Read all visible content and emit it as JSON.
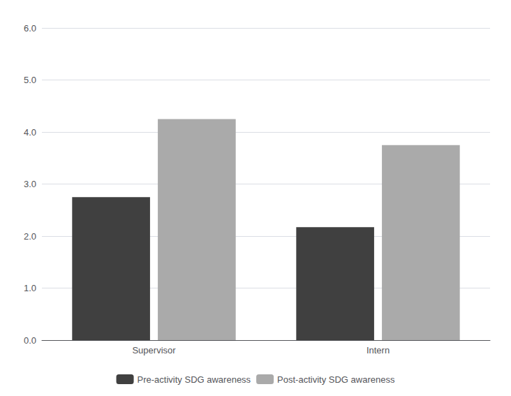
{
  "chart_data": {
    "type": "bar",
    "categories": [
      "Supervisor",
      "Intern"
    ],
    "series": [
      {
        "name": "Pre-activity SDG awareness",
        "color": "#404040",
        "values": [
          2.75,
          2.17
        ]
      },
      {
        "name": "Post-activity SDG awareness",
        "color": "#aaaaaa",
        "values": [
          4.25,
          3.75
        ]
      }
    ],
    "ylim": [
      0,
      6.0
    ],
    "yticks": [
      {
        "value": 0,
        "label": "0.0"
      },
      {
        "value": 1,
        "label": "1.0"
      },
      {
        "value": 2,
        "label": "2.0"
      },
      {
        "value": 3,
        "label": "3.0"
      },
      {
        "value": 4,
        "label": "4.0"
      },
      {
        "value": 5,
        "label": "5.0"
      },
      {
        "value": 6,
        "label": "6.0"
      }
    ],
    "grid": true,
    "legend": "bottom"
  }
}
